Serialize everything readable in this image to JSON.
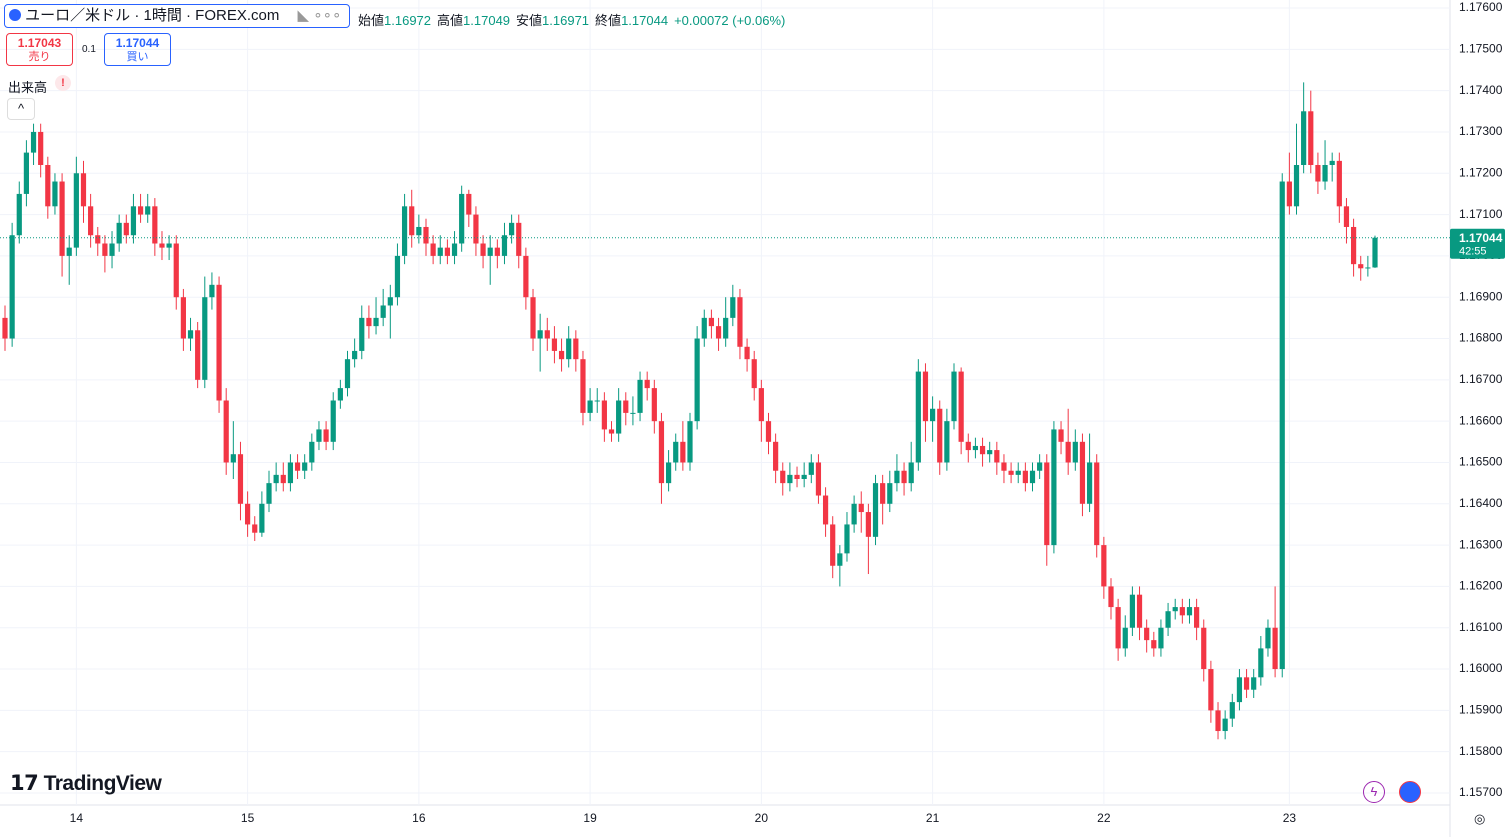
{
  "header": {
    "symbol": "ユーロ／米ドル · 1時間 · FOREX.com",
    "ohlc": [
      {
        "label": "始値",
        "value": "1.16972"
      },
      {
        "label": "高値",
        "value": "1.17049"
      },
      {
        "label": "安値",
        "value": "1.16971"
      },
      {
        "label": "終値",
        "value": "1.17044"
      }
    ],
    "change": "+0.00072 (+0.06%)",
    "sell": {
      "price": "1.17043",
      "label": "売り"
    },
    "spread": "0.1",
    "buy": {
      "price": "1.17044",
      "label": "買い"
    },
    "volume": "出来高"
  },
  "logo": "TradingView",
  "chart_data": {
    "type": "candlestick",
    "up_color": "#089981",
    "down_color": "#f23645",
    "grid": true,
    "ylim": [
      1.157,
      1.176
    ],
    "yticks": [
      {
        "value": 1.176,
        "label": "1.17600"
      },
      {
        "value": 1.175,
        "label": "1.17500"
      },
      {
        "value": 1.174,
        "label": "1.17400"
      },
      {
        "value": 1.173,
        "label": "1.17300"
      },
      {
        "value": 1.172,
        "label": "1.17200"
      },
      {
        "value": 1.171,
        "label": "1.17100"
      },
      {
        "value": 1.17,
        "label": "1.17000"
      },
      {
        "value": 1.169,
        "label": "1.16900"
      },
      {
        "value": 1.168,
        "label": "1.16800"
      },
      {
        "value": 1.167,
        "label": "1.16700"
      },
      {
        "value": 1.166,
        "label": "1.16600"
      },
      {
        "value": 1.165,
        "label": "1.16500"
      },
      {
        "value": 1.164,
        "label": "1.16400"
      },
      {
        "value": 1.163,
        "label": "1.16300"
      },
      {
        "value": 1.162,
        "label": "1.16200"
      },
      {
        "value": 1.161,
        "label": "1.16100"
      },
      {
        "value": 1.16,
        "label": "1.16000"
      },
      {
        "value": 1.159,
        "label": "1.15900"
      },
      {
        "value": 1.158,
        "label": "1.15800"
      },
      {
        "value": 1.157,
        "label": "1.15700"
      }
    ],
    "last_price": {
      "value": 1.17044,
      "label": "1.17044",
      "countdown": "42:55"
    },
    "categories": [
      null,
      null,
      null,
      null,
      null,
      null,
      null,
      null,
      null,
      null,
      "14",
      null,
      null,
      null,
      null,
      null,
      null,
      null,
      null,
      null,
      null,
      null,
      null,
      null,
      null,
      null,
      null,
      null,
      null,
      null,
      null,
      null,
      null,
      null,
      "15",
      null,
      null,
      null,
      null,
      null,
      null,
      null,
      null,
      null,
      null,
      null,
      null,
      null,
      null,
      null,
      null,
      null,
      null,
      null,
      null,
      null,
      null,
      null,
      "16",
      null,
      null,
      null,
      null,
      null,
      null,
      null,
      null,
      null,
      null,
      null,
      null,
      null,
      null,
      null,
      null,
      null,
      null,
      null,
      null,
      null,
      null,
      null,
      "19",
      null,
      null,
      null,
      null,
      null,
      null,
      null,
      null,
      null,
      null,
      null,
      null,
      null,
      null,
      null,
      null,
      null,
      null,
      null,
      null,
      null,
      null,
      null,
      "20",
      null,
      null,
      null,
      null,
      null,
      null,
      null,
      null,
      null,
      null,
      null,
      null,
      null,
      null,
      null,
      null,
      null,
      null,
      null,
      null,
      null,
      null,
      null,
      "21",
      null,
      null,
      null,
      null,
      null,
      null,
      null,
      null,
      null,
      null,
      null,
      null,
      null,
      null,
      null,
      null,
      null,
      null,
      null,
      null,
      null,
      null,
      null,
      "22",
      null,
      null,
      null,
      null,
      null,
      null,
      null,
      null,
      null,
      null,
      null,
      null,
      null,
      null,
      null,
      null,
      null,
      null,
      null,
      null,
      null,
      null,
      null,
      null,
      null,
      "23",
      null,
      null,
      null,
      null,
      null,
      null,
      null,
      null,
      null,
      null,
      null,
      null
    ],
    "ohlc": [
      [
        1.1685,
        1.1688,
        1.1677,
        1.168
      ],
      [
        1.168,
        1.1708,
        1.1678,
        1.1705
      ],
      [
        1.1705,
        1.1718,
        1.1703,
        1.1715
      ],
      [
        1.1715,
        1.1728,
        1.1712,
        1.1725
      ],
      [
        1.1725,
        1.1732,
        1.1722,
        1.173
      ],
      [
        1.173,
        1.1732,
        1.1719,
        1.1722
      ],
      [
        1.1722,
        1.1724,
        1.1709,
        1.1712
      ],
      [
        1.1712,
        1.172,
        1.171,
        1.1718
      ],
      [
        1.1718,
        1.172,
        1.1695,
        1.17
      ],
      [
        1.17,
        1.1705,
        1.1693,
        1.1702
      ],
      [
        1.1702,
        1.1724,
        1.17,
        1.172
      ],
      [
        1.172,
        1.1723,
        1.1708,
        1.1712
      ],
      [
        1.1712,
        1.1715,
        1.1702,
        1.1705
      ],
      [
        1.1705,
        1.1707,
        1.17,
        1.1703
      ],
      [
        1.1703,
        1.1705,
        1.1696,
        1.17
      ],
      [
        1.17,
        1.1706,
        1.1697,
        1.1703
      ],
      [
        1.1703,
        1.171,
        1.1701,
        1.1708
      ],
      [
        1.1708,
        1.171,
        1.1703,
        1.1705
      ],
      [
        1.1705,
        1.1715,
        1.1703,
        1.1712
      ],
      [
        1.1712,
        1.1715,
        1.1708,
        1.171
      ],
      [
        1.171,
        1.1715,
        1.1708,
        1.1712
      ],
      [
        1.1712,
        1.1714,
        1.17,
        1.1703
      ],
      [
        1.1703,
        1.1706,
        1.1699,
        1.1702
      ],
      [
        1.1702,
        1.1705,
        1.1699,
        1.1703
      ],
      [
        1.1703,
        1.1705,
        1.1687,
        1.169
      ],
      [
        1.169,
        1.1692,
        1.1677,
        1.168
      ],
      [
        1.168,
        1.1685,
        1.1677,
        1.1682
      ],
      [
        1.1682,
        1.1684,
        1.1668,
        1.167
      ],
      [
        1.167,
        1.1695,
        1.1668,
        1.169
      ],
      [
        1.169,
        1.1696,
        1.1687,
        1.1693
      ],
      [
        1.1693,
        1.1695,
        1.1662,
        1.1665
      ],
      [
        1.1665,
        1.1668,
        1.1647,
        1.165
      ],
      [
        1.165,
        1.166,
        1.1646,
        1.1652
      ],
      [
        1.1652,
        1.1655,
        1.1636,
        1.164
      ],
      [
        1.164,
        1.1643,
        1.1632,
        1.1635
      ],
      [
        1.1635,
        1.1637,
        1.1631,
        1.1633
      ],
      [
        1.1633,
        1.1643,
        1.1632,
        1.164
      ],
      [
        1.164,
        1.1648,
        1.1638,
        1.1645
      ],
      [
        1.1645,
        1.165,
        1.1643,
        1.1647
      ],
      [
        1.1647,
        1.165,
        1.1643,
        1.1645
      ],
      [
        1.1645,
        1.1652,
        1.1643,
        1.165
      ],
      [
        1.165,
        1.1652,
        1.1646,
        1.1648
      ],
      [
        1.1648,
        1.1652,
        1.1646,
        1.165
      ],
      [
        1.165,
        1.1657,
        1.1648,
        1.1655
      ],
      [
        1.1655,
        1.166,
        1.1653,
        1.1658
      ],
      [
        1.1658,
        1.166,
        1.1653,
        1.1655
      ],
      [
        1.1655,
        1.1667,
        1.1653,
        1.1665
      ],
      [
        1.1665,
        1.167,
        1.1663,
        1.1668
      ],
      [
        1.1668,
        1.1677,
        1.1666,
        1.1675
      ],
      [
        1.1675,
        1.168,
        1.1673,
        1.1677
      ],
      [
        1.1677,
        1.1688,
        1.1675,
        1.1685
      ],
      [
        1.1685,
        1.1688,
        1.168,
        1.1683
      ],
      [
        1.1683,
        1.169,
        1.1681,
        1.1685
      ],
      [
        1.1685,
        1.1692,
        1.1683,
        1.1688
      ],
      [
        1.1688,
        1.1693,
        1.168,
        1.169
      ],
      [
        1.169,
        1.1703,
        1.1688,
        1.17
      ],
      [
        1.17,
        1.1715,
        1.1698,
        1.1712
      ],
      [
        1.1712,
        1.1716,
        1.1702,
        1.1705
      ],
      [
        1.1705,
        1.171,
        1.1703,
        1.1707
      ],
      [
        1.1707,
        1.1709,
        1.17,
        1.1703
      ],
      [
        1.1703,
        1.1705,
        1.1698,
        1.17
      ],
      [
        1.17,
        1.1705,
        1.1698,
        1.1702
      ],
      [
        1.1702,
        1.1704,
        1.1698,
        1.17
      ],
      [
        1.17,
        1.1706,
        1.1698,
        1.1703
      ],
      [
        1.1703,
        1.1717,
        1.1701,
        1.1715
      ],
      [
        1.1715,
        1.1716,
        1.1707,
        1.171
      ],
      [
        1.171,
        1.1712,
        1.17,
        1.1703
      ],
      [
        1.1703,
        1.1705,
        1.1697,
        1.17
      ],
      [
        1.17,
        1.1705,
        1.1693,
        1.1702
      ],
      [
        1.1702,
        1.1704,
        1.1697,
        1.17
      ],
      [
        1.17,
        1.1708,
        1.1698,
        1.1705
      ],
      [
        1.1705,
        1.171,
        1.1703,
        1.1708
      ],
      [
        1.1708,
        1.171,
        1.1697,
        1.17
      ],
      [
        1.17,
        1.1702,
        1.1687,
        1.169
      ],
      [
        1.169,
        1.1692,
        1.1677,
        1.168
      ],
      [
        1.168,
        1.1686,
        1.1672,
        1.1682
      ],
      [
        1.1682,
        1.1685,
        1.1677,
        1.168
      ],
      [
        1.168,
        1.1683,
        1.1674,
        1.1677
      ],
      [
        1.1677,
        1.168,
        1.1672,
        1.1675
      ],
      [
        1.1675,
        1.1683,
        1.1673,
        1.168
      ],
      [
        1.168,
        1.1682,
        1.1672,
        1.1675
      ],
      [
        1.1675,
        1.1677,
        1.1659,
        1.1662
      ],
      [
        1.1662,
        1.1668,
        1.166,
        1.1665
      ],
      [
        1.1665,
        1.1668,
        1.1662,
        1.1665
      ],
      [
        1.1665,
        1.1667,
        1.1655,
        1.1658
      ],
      [
        1.1658,
        1.166,
        1.1655,
        1.1657
      ],
      [
        1.1657,
        1.1668,
        1.1655,
        1.1665
      ],
      [
        1.1665,
        1.1667,
        1.1659,
        1.1662
      ],
      [
        1.1662,
        1.1666,
        1.1659,
        1.1662
      ],
      [
        1.1662,
        1.1672,
        1.166,
        1.167
      ],
      [
        1.167,
        1.1672,
        1.1665,
        1.1668
      ],
      [
        1.1668,
        1.167,
        1.1657,
        1.166
      ],
      [
        1.166,
        1.1662,
        1.164,
        1.1645
      ],
      [
        1.1645,
        1.1653,
        1.1643,
        1.165
      ],
      [
        1.165,
        1.1657,
        1.1648,
        1.1655
      ],
      [
        1.1655,
        1.166,
        1.1648,
        1.165
      ],
      [
        1.165,
        1.1662,
        1.1648,
        1.166
      ],
      [
        1.166,
        1.1683,
        1.1658,
        1.168
      ],
      [
        1.168,
        1.1687,
        1.1678,
        1.1685
      ],
      [
        1.1685,
        1.1687,
        1.168,
        1.1683
      ],
      [
        1.1683,
        1.1685,
        1.1677,
        1.168
      ],
      [
        1.168,
        1.169,
        1.1678,
        1.1685
      ],
      [
        1.1685,
        1.1693,
        1.1683,
        1.169
      ],
      [
        1.169,
        1.1692,
        1.1675,
        1.1678
      ],
      [
        1.1678,
        1.168,
        1.1672,
        1.1675
      ],
      [
        1.1675,
        1.1677,
        1.1665,
        1.1668
      ],
      [
        1.1668,
        1.167,
        1.1655,
        1.166
      ],
      [
        1.166,
        1.1662,
        1.1652,
        1.1655
      ],
      [
        1.1655,
        1.1657,
        1.1645,
        1.1648
      ],
      [
        1.1648,
        1.165,
        1.1642,
        1.1645
      ],
      [
        1.1645,
        1.165,
        1.1643,
        1.1647
      ],
      [
        1.1647,
        1.1649,
        1.1644,
        1.1646
      ],
      [
        1.1646,
        1.165,
        1.1644,
        1.1647
      ],
      [
        1.1647,
        1.1652,
        1.1645,
        1.165
      ],
      [
        1.165,
        1.1652,
        1.164,
        1.1642
      ],
      [
        1.1642,
        1.1644,
        1.1632,
        1.1635
      ],
      [
        1.1635,
        1.1637,
        1.1622,
        1.1625
      ],
      [
        1.1625,
        1.163,
        1.162,
        1.1628
      ],
      [
        1.1628,
        1.1638,
        1.1626,
        1.1635
      ],
      [
        1.1635,
        1.1642,
        1.1633,
        1.164
      ],
      [
        1.164,
        1.1643,
        1.1633,
        1.1638
      ],
      [
        1.1638,
        1.164,
        1.1623,
        1.1632
      ],
      [
        1.1632,
        1.1647,
        1.163,
        1.1645
      ],
      [
        1.1645,
        1.1647,
        1.1635,
        1.164
      ],
      [
        1.164,
        1.1648,
        1.1638,
        1.1645
      ],
      [
        1.1645,
        1.1652,
        1.1643,
        1.1648
      ],
      [
        1.1648,
        1.165,
        1.1642,
        1.1645
      ],
      [
        1.1645,
        1.1655,
        1.1643,
        1.165
      ],
      [
        1.165,
        1.1675,
        1.1648,
        1.1672
      ],
      [
        1.1672,
        1.1674,
        1.1655,
        1.166
      ],
      [
        1.166,
        1.1666,
        1.1655,
        1.1663
      ],
      [
        1.1663,
        1.1665,
        1.1647,
        1.165
      ],
      [
        1.165,
        1.1663,
        1.1648,
        1.166
      ],
      [
        1.166,
        1.1674,
        1.1658,
        1.1672
      ],
      [
        1.1672,
        1.1673,
        1.1652,
        1.1655
      ],
      [
        1.1655,
        1.1657,
        1.165,
        1.1653
      ],
      [
        1.1653,
        1.1656,
        1.1651,
        1.1654
      ],
      [
        1.1654,
        1.1656,
        1.1649,
        1.1652
      ],
      [
        1.1652,
        1.1655,
        1.165,
        1.1653
      ],
      [
        1.1653,
        1.1655,
        1.1647,
        1.165
      ],
      [
        1.165,
        1.1652,
        1.1645,
        1.1648
      ],
      [
        1.1648,
        1.165,
        1.1645,
        1.1647
      ],
      [
        1.1647,
        1.165,
        1.1645,
        1.1648
      ],
      [
        1.1648,
        1.165,
        1.1643,
        1.1645
      ],
      [
        1.1645,
        1.165,
        1.1643,
        1.1648
      ],
      [
        1.1648,
        1.1652,
        1.1646,
        1.165
      ],
      [
        1.165,
        1.1652,
        1.1625,
        1.163
      ],
      [
        1.163,
        1.166,
        1.1628,
        1.1658
      ],
      [
        1.1658,
        1.166,
        1.1652,
        1.1655
      ],
      [
        1.1655,
        1.1663,
        1.1647,
        1.165
      ],
      [
        1.165,
        1.1658,
        1.1648,
        1.1655
      ],
      [
        1.1655,
        1.1657,
        1.1637,
        1.164
      ],
      [
        1.164,
        1.1657,
        1.1638,
        1.165
      ],
      [
        1.165,
        1.1652,
        1.1627,
        1.163
      ],
      [
        1.163,
        1.1632,
        1.1617,
        1.162
      ],
      [
        1.162,
        1.1622,
        1.1612,
        1.1615
      ],
      [
        1.1615,
        1.1617,
        1.1602,
        1.1605
      ],
      [
        1.1605,
        1.1613,
        1.1603,
        1.161
      ],
      [
        1.161,
        1.162,
        1.1608,
        1.1618
      ],
      [
        1.1618,
        1.162,
        1.1607,
        1.161
      ],
      [
        1.161,
        1.1612,
        1.1604,
        1.1607
      ],
      [
        1.1607,
        1.1609,
        1.1603,
        1.1605
      ],
      [
        1.1605,
        1.1612,
        1.1603,
        1.161
      ],
      [
        1.161,
        1.1616,
        1.1608,
        1.1614
      ],
      [
        1.1614,
        1.1617,
        1.1612,
        1.1615
      ],
      [
        1.1615,
        1.1617,
        1.1611,
        1.1613
      ],
      [
        1.1613,
        1.1617,
        1.1611,
        1.1615
      ],
      [
        1.1615,
        1.1617,
        1.1607,
        1.161
      ],
      [
        1.161,
        1.1612,
        1.1597,
        1.16
      ],
      [
        1.16,
        1.1602,
        1.1587,
        1.159
      ],
      [
        1.159,
        1.1592,
        1.1583,
        1.1585
      ],
      [
        1.1585,
        1.159,
        1.1583,
        1.1588
      ],
      [
        1.1588,
        1.1594,
        1.1586,
        1.1592
      ],
      [
        1.1592,
        1.16,
        1.159,
        1.1598
      ],
      [
        1.1598,
        1.16,
        1.1593,
        1.1595
      ],
      [
        1.1595,
        1.16,
        1.1593,
        1.1598
      ],
      [
        1.1598,
        1.1608,
        1.1596,
        1.1605
      ],
      [
        1.1605,
        1.1612,
        1.1603,
        1.161
      ],
      [
        1.161,
        1.162,
        1.1598,
        1.16
      ],
      [
        1.16,
        1.172,
        1.1598,
        1.1718
      ],
      [
        1.1718,
        1.1725,
        1.171,
        1.1712
      ],
      [
        1.1712,
        1.1732,
        1.171,
        1.1722
      ],
      [
        1.1722,
        1.1742,
        1.172,
        1.1735
      ],
      [
        1.1735,
        1.174,
        1.172,
        1.1722
      ],
      [
        1.1722,
        1.1725,
        1.1715,
        1.1718
      ],
      [
        1.1718,
        1.1728,
        1.1716,
        1.1722
      ],
      [
        1.1722,
        1.1725,
        1.1718,
        1.1723
      ],
      [
        1.1723,
        1.1725,
        1.1708,
        1.1712
      ],
      [
        1.1712,
        1.1714,
        1.1703,
        1.1707
      ],
      [
        1.1707,
        1.1709,
        1.1695,
        1.1698
      ],
      [
        1.1698,
        1.17,
        1.1694,
        1.1697
      ],
      [
        1.1697,
        1.17,
        1.1695,
        1.16972
      ],
      [
        1.16972,
        1.17049,
        1.16971,
        1.17044
      ]
    ]
  }
}
